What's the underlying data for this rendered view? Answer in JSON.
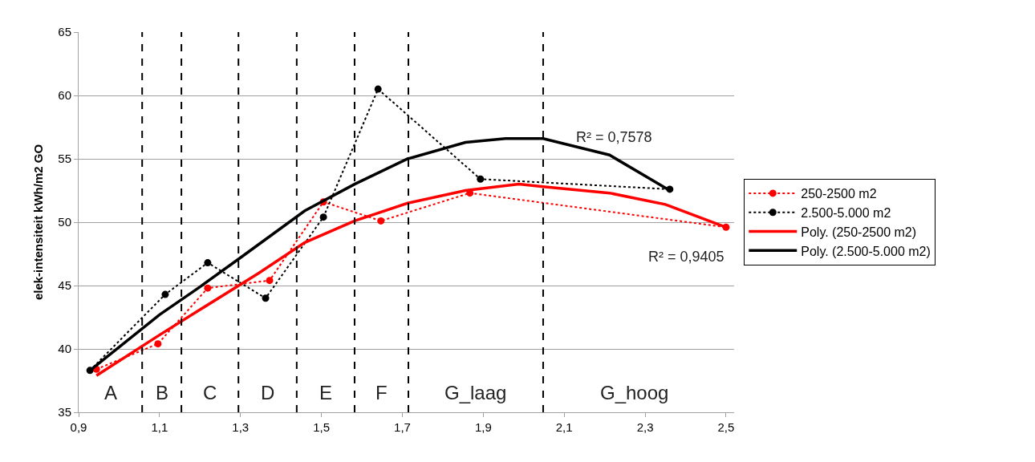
{
  "chart_data": {
    "type": "line",
    "ylabel": "elek-intensiteit kWh/m2 GO",
    "xlim": [
      0.9,
      2.52
    ],
    "ylim": [
      35,
      65
    ],
    "xticks": [
      {
        "value": 0.9,
        "label": "0,9"
      },
      {
        "value": 1.1,
        "label": "1,1"
      },
      {
        "value": 1.3,
        "label": "1,3"
      },
      {
        "value": 1.5,
        "label": "1,5"
      },
      {
        "value": 1.7,
        "label": "1,7"
      },
      {
        "value": 1.9,
        "label": "1,9"
      },
      {
        "value": 2.1,
        "label": "2,1"
      },
      {
        "value": 2.3,
        "label": "2,3"
      },
      {
        "value": 2.5,
        "label": "2,5"
      }
    ],
    "yticks": [
      35,
      40,
      45,
      50,
      55,
      60,
      65
    ],
    "grid": "y",
    "legend": "right",
    "series": [
      {
        "name": "250-2500 m2",
        "color": "#ff0000",
        "marker": "circle",
        "line_style": "dotted",
        "x": [
          0.944,
          1.096,
          1.219,
          1.372,
          1.505,
          1.647,
          1.867,
          2.5
        ],
        "values": [
          38.4,
          40.4,
          44.8,
          45.4,
          51.6,
          50.1,
          52.3,
          49.6
        ]
      },
      {
        "name": "2.500-5.000 m2",
        "color": "#000000",
        "marker": "circle",
        "line_style": "dotted",
        "x": [
          0.928,
          1.114,
          1.219,
          1.362,
          1.505,
          1.64,
          1.893,
          2.361
        ],
        "values": [
          38.3,
          44.3,
          46.8,
          44.0,
          50.4,
          60.5,
          53.4,
          52.6
        ]
      },
      {
        "name": "Poly. (250-2500 m2)",
        "color": "#ff0000",
        "marker": "none",
        "line_style": "solid",
        "x": [
          0.944,
          1.1,
          1.2,
          1.346,
          1.459,
          1.582,
          1.713,
          1.856,
          1.988,
          2.048,
          2.212,
          2.35,
          2.5
        ],
        "values": [
          37.9,
          41.1,
          43.1,
          46.0,
          48.4,
          50.1,
          51.5,
          52.5,
          53.0,
          52.8,
          52.3,
          51.4,
          49.6
        ]
      },
      {
        "name": "Poly. (2.500-5.000 m2)",
        "color": "#000000",
        "marker": "none",
        "line_style": "solid",
        "x": [
          0.928,
          1.1,
          1.2,
          1.3,
          1.459,
          1.582,
          1.713,
          1.856,
          1.955,
          2.048,
          2.212,
          2.361
        ],
        "values": [
          38.3,
          42.7,
          44.9,
          47.2,
          50.9,
          53.0,
          55.0,
          56.3,
          56.6,
          56.6,
          55.3,
          52.5
        ]
      }
    ],
    "ref_lines": [
      {
        "axis": "x",
        "value": 1.057,
        "color": "#000000",
        "line_style": "dashed"
      },
      {
        "axis": "x",
        "value": 1.154,
        "color": "#000000",
        "line_style": "dashed"
      },
      {
        "axis": "x",
        "value": 1.295,
        "color": "#000000",
        "line_style": "dashed"
      },
      {
        "axis": "x",
        "value": 1.439,
        "color": "#000000",
        "line_style": "dashed"
      },
      {
        "axis": "x",
        "value": 1.582,
        "color": "#000000",
        "line_style": "dashed"
      },
      {
        "axis": "x",
        "value": 1.715,
        "color": "#000000",
        "line_style": "dashed"
      },
      {
        "axis": "x",
        "value": 2.048,
        "color": "#000000",
        "line_style": "dashed"
      }
    ],
    "annotations": [
      "A",
      "B",
      "C",
      "D",
      "E",
      "F",
      "G_laag",
      "G_hoog",
      "R² = 0,9405",
      "R² = 0,7578"
    ]
  }
}
